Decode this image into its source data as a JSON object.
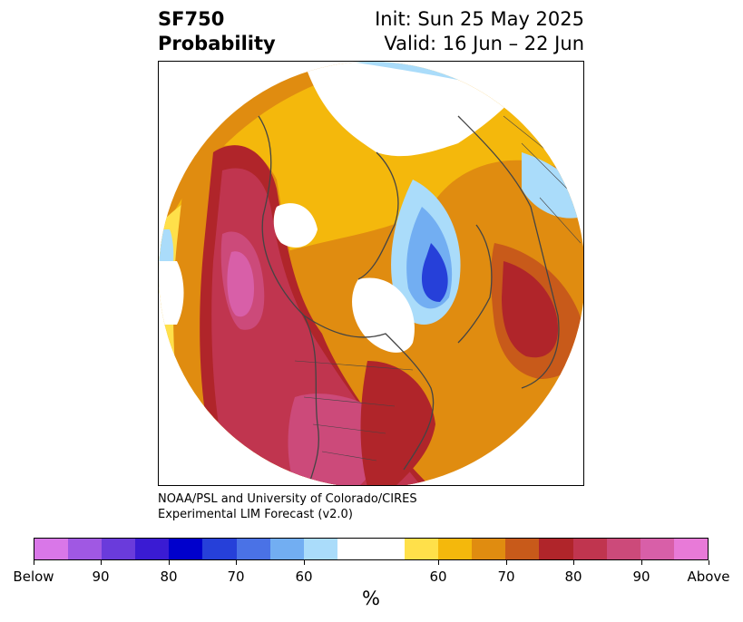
{
  "title": {
    "left_line1": "SF750",
    "left_line2": "Probability",
    "right_line1": "Init: Sun 25 May 2025",
    "right_line2": "Valid: 16 Jun – 22 Jun"
  },
  "credit": {
    "line1": "NOAA/PSL and University of Colorado/CIRES",
    "line2": "Experimental LIM Forecast (v2.0)"
  },
  "colorbar": {
    "colors": [
      "#d977e8",
      "#a058e3",
      "#6a3bdb",
      "#3a1bd3",
      "#0000cc",
      "#2640d9",
      "#4a72e6",
      "#72aef2",
      "#aadcfa",
      "#ffffff",
      "#ffe04a",
      "#f4b80c",
      "#e08c10",
      "#c85a1a",
      "#b0252a",
      "#c0354f",
      "#cc4a7a",
      "#d85fa8",
      "#e87ad8"
    ],
    "tick_labels": [
      "Below",
      "90",
      "80",
      "70",
      "60",
      "60",
      "70",
      "80",
      "90",
      "Above"
    ],
    "unit": "%"
  },
  "map": {
    "category_colors": {
      "white": "#ffffff",
      "light_yellow": "#ffe04a",
      "gold": "#f4b80c",
      "orange": "#e08c10",
      "dark_orange": "#c85a1a",
      "red": "#b0252a",
      "crimson": "#c0354f",
      "rose": "#cc4a7a",
      "pink": "#d85fa8",
      "light_blue": "#aadcfa",
      "sky_blue": "#72aef2",
      "blue": "#4a72e6",
      "royal_blue": "#2640d9"
    }
  }
}
